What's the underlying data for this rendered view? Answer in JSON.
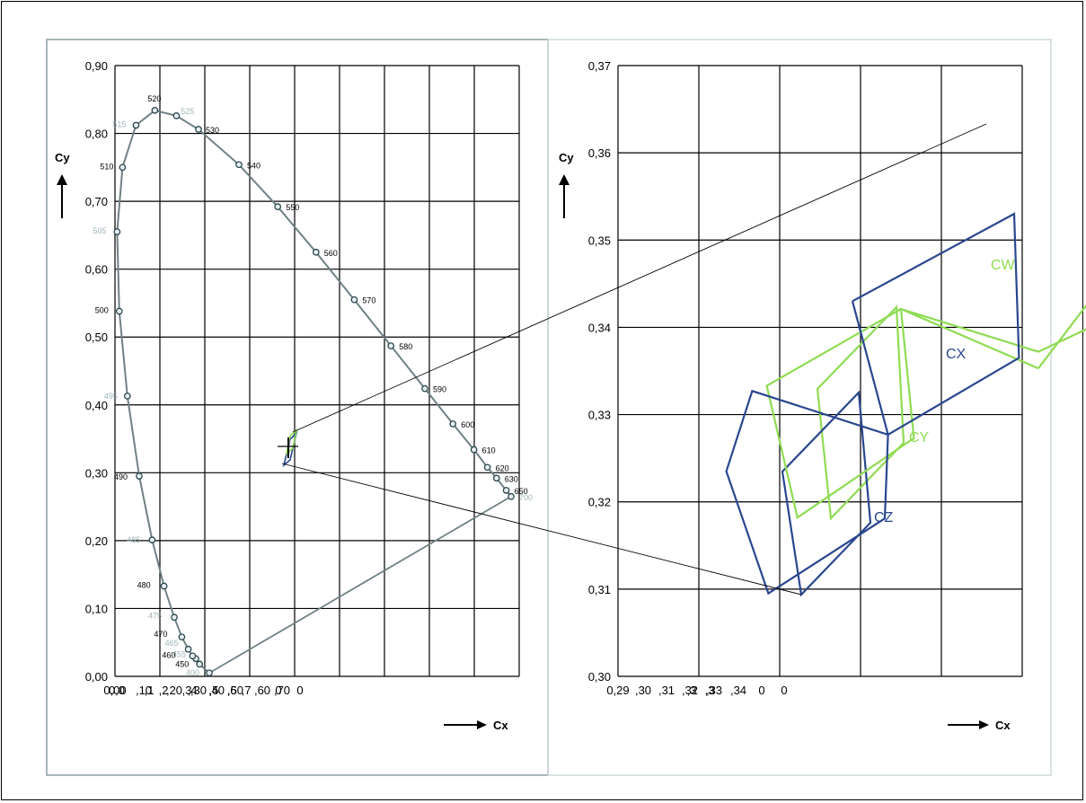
{
  "chart_data": [
    {
      "type": "line",
      "title": "",
      "xlabel": "Cx",
      "ylabel": "Cy",
      "xlim": [
        0.0,
        0.75
      ],
      "ylim": [
        0.0,
        0.9
      ],
      "grid": true,
      "x_tick_labels": [
        "0,00",
        ",10",
        ",20",
        ",30",
        ",40",
        ",50",
        ",60",
        ",70"
      ],
      "x_tick_label_overflow": [
        "0,0",
        ",1",
        ",2",
        ",3",
        ",4",
        ",5",
        ",6",
        ",7",
        "0",
        "0"
      ],
      "y_tick_labels": [
        "0,00",
        "0,10",
        "0,20",
        "0,30",
        "0,40",
        "0,50",
        "0,60",
        "0,70",
        "0,80",
        "0,90"
      ],
      "spectral_locus": [
        {
          "label": "400",
          "x": 0.175,
          "y": 0.005,
          "faint": true
        },
        {
          "label": "450",
          "x": 0.157,
          "y": 0.018,
          "faint": false
        },
        {
          "label": "455",
          "x": 0.15,
          "y": 0.026,
          "faint": true
        },
        {
          "label": "460",
          "x": 0.144,
          "y": 0.03,
          "faint": false
        },
        {
          "label": "465",
          "x": 0.136,
          "y": 0.04,
          "faint": true
        },
        {
          "label": "470",
          "x": 0.124,
          "y": 0.058,
          "faint": false
        },
        {
          "label": "475",
          "x": 0.11,
          "y": 0.087,
          "faint": true
        },
        {
          "label": "480",
          "x": 0.091,
          "y": 0.133,
          "faint": false
        },
        {
          "label": "485",
          "x": 0.069,
          "y": 0.201,
          "faint": true
        },
        {
          "label": "490",
          "x": 0.045,
          "y": 0.295,
          "faint": false
        },
        {
          "label": "495",
          "x": 0.023,
          "y": 0.413,
          "faint": true
        },
        {
          "label": "500",
          "x": 0.008,
          "y": 0.538,
          "faint": false
        },
        {
          "label": "505",
          "x": 0.004,
          "y": 0.655,
          "faint": true
        },
        {
          "label": "510",
          "x": 0.014,
          "y": 0.75,
          "faint": false
        },
        {
          "label": "515",
          "x": 0.039,
          "y": 0.812,
          "faint": true
        },
        {
          "label": "520",
          "x": 0.074,
          "y": 0.834,
          "faint": false
        },
        {
          "label": "525",
          "x": 0.114,
          "y": 0.826,
          "faint": true
        },
        {
          "label": "530",
          "x": 0.155,
          "y": 0.806,
          "faint": false
        },
        {
          "label": "540",
          "x": 0.23,
          "y": 0.754,
          "faint": false
        },
        {
          "label": "550",
          "x": 0.302,
          "y": 0.692,
          "faint": false
        },
        {
          "label": "560",
          "x": 0.373,
          "y": 0.625,
          "faint": false
        },
        {
          "label": "570",
          "x": 0.444,
          "y": 0.555,
          "faint": false
        },
        {
          "label": "580",
          "x": 0.512,
          "y": 0.487,
          "faint": false
        },
        {
          "label": "590",
          "x": 0.575,
          "y": 0.424,
          "faint": false
        },
        {
          "label": "600",
          "x": 0.627,
          "y": 0.372,
          "faint": false
        },
        {
          "label": "610",
          "x": 0.666,
          "y": 0.334,
          "faint": false
        },
        {
          "label": "620",
          "x": 0.691,
          "y": 0.308,
          "faint": false
        },
        {
          "label": "630",
          "x": 0.708,
          "y": 0.292,
          "faint": false
        },
        {
          "label": "650",
          "x": 0.726,
          "y": 0.274,
          "faint": false
        },
        {
          "label": "700",
          "x": 0.735,
          "y": 0.265,
          "faint": true
        }
      ]
    },
    {
      "type": "line",
      "title": "",
      "xlabel": "Cx",
      "ylabel": "Cy",
      "ylim": [
        0.3,
        0.37
      ],
      "grid": true,
      "x_tick_labels": [
        "0,29",
        ",30",
        ",31",
        ",32",
        ",33",
        ",34",
        "0",
        "0"
      ],
      "x_tick_label_overflow": [
        ",3",
        ",3"
      ],
      "y_tick_labels": [
        "0,30",
        "0,31",
        "0,32",
        "0,33",
        "0,34",
        "0,35",
        "0,36",
        "0,37"
      ],
      "series": [
        {
          "name": "CW",
          "color": "#8fdc53",
          "points": [
            [
              0.3135,
              0.3353
            ],
            [
              0.325,
              0.3633
            ],
            [
              0.3245,
              0.3468
            ],
            [
              0.3135,
              0.3372
            ],
            [
              0.305,
              0.3421
            ],
            [
              0.3058,
              0.3273
            ],
            [
              0.2986,
              0.3182
            ],
            [
              0.2967,
              0.3333
            ],
            [
              0.305,
              0.3421
            ],
            [
              0.3135,
              0.3353
            ]
          ]
        },
        {
          "name": "CX",
          "color": "#29478f",
          "points": [
            [
              0.302,
              0.343
            ],
            [
              0.312,
              0.353
            ],
            [
              0.3123,
              0.3365
            ],
            [
              0.3042,
              0.3277
            ],
            [
              0.2958,
              0.3327
            ],
            [
              0.2942,
              0.3235
            ],
            [
              0.2968,
              0.3095
            ],
            [
              0.304,
              0.3181
            ],
            [
              0.3042,
              0.3277
            ],
            [
              0.302,
              0.343
            ]
          ]
        }
      ],
      "series_labels": [
        "CW",
        "CX",
        "CY",
        "CZ"
      ]
    }
  ],
  "annotations": {
    "left_arrow_label": "Cx",
    "right_arrow_label": "Cx"
  }
}
